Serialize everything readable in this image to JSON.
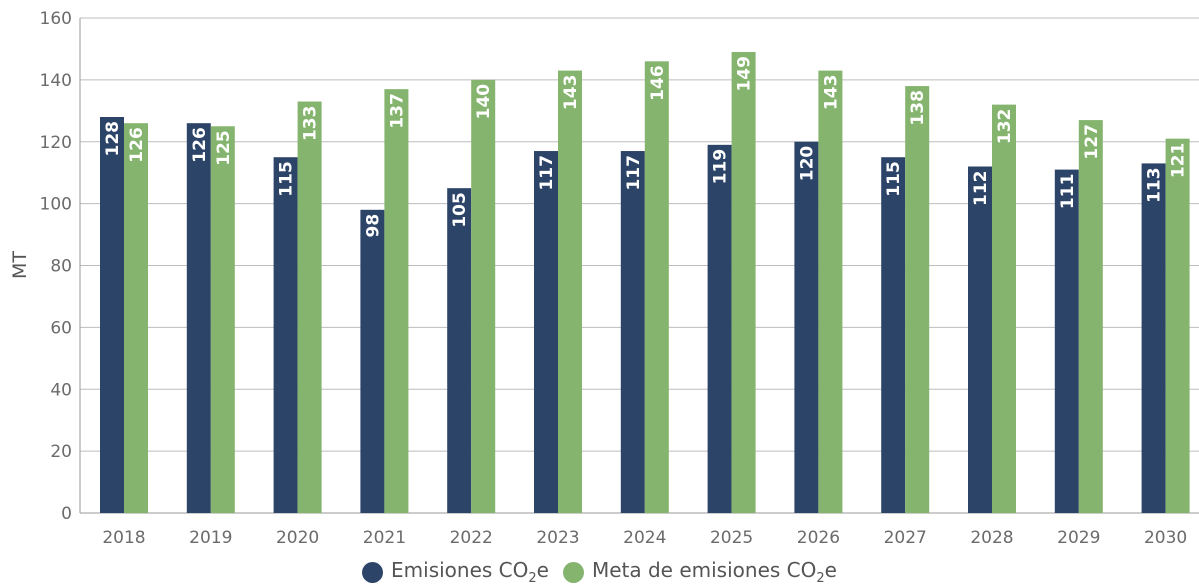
{
  "chart_data": {
    "type": "bar",
    "categories": [
      "2018",
      "2019",
      "2020",
      "2021",
      "2022",
      "2023",
      "2024",
      "2025",
      "2026",
      "2027",
      "2028",
      "2029",
      "2030"
    ],
    "series": [
      {
        "name": "Emisiones CO2e",
        "name_main": "Emisiones CO",
        "name_sub": "2",
        "name_end": "e",
        "color": "#2d4469",
        "values": [
          128,
          126,
          115,
          98,
          105,
          117,
          117,
          119,
          120,
          115,
          112,
          111,
          113
        ]
      },
      {
        "name": "Meta de emisiones CO2e",
        "name_main": "Meta de emisiones CO",
        "name_sub": "2",
        "name_end": "e",
        "color": "#84b46e",
        "values": [
          126,
          125,
          133,
          137,
          140,
          143,
          146,
          149,
          143,
          138,
          132,
          127,
          121
        ]
      }
    ],
    "ylabel": "MT",
    "xlabel": "",
    "ylim": [
      0,
      160
    ],
    "yticks": [
      0,
      20,
      40,
      60,
      80,
      100,
      120,
      140,
      160
    ],
    "grid": true,
    "legend_position": "bottom-center",
    "data_labels": "inside-bar-rotated"
  }
}
